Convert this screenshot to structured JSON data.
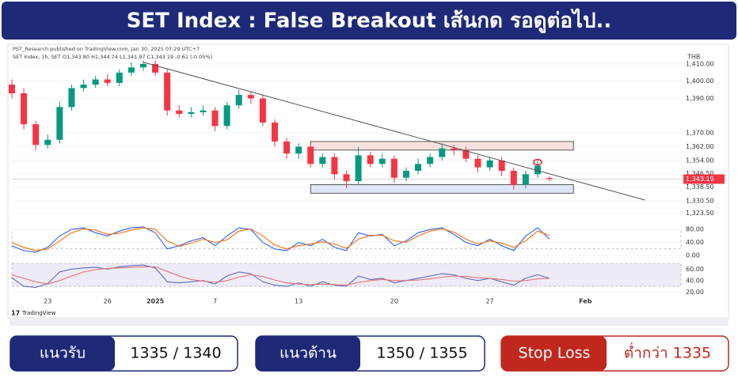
{
  "header": {
    "title": "SET Index : False Breakout เส้นกด รอดูต่อไป.."
  },
  "chart_data": [
    {
      "type": "candlestick",
      "subtitle": "PST_Research published on TradingView.com, Jan 30, 2025 07:29 UTC+7",
      "title": "SET Index, 1h, SET O1,343.80 H1,344.74 L1,341.97 C1,343.19 -0.61 (-0.05%)",
      "y_label": "THB",
      "xlim": [
        0,
        56
      ],
      "ylim": [
        1320,
        1415
      ],
      "yticks": [
        {
          "value": 1410,
          "label": "1,410.00"
        },
        {
          "value": 1400,
          "label": "1,400.00"
        },
        {
          "value": 1390,
          "label": "1,390.00"
        },
        {
          "value": 1370,
          "label": "1,370.00"
        },
        {
          "value": 1362,
          "label": "1,362.00"
        },
        {
          "value": 1354,
          "label": "1,354.00"
        },
        {
          "value": 1346.5,
          "label": "1,346.50"
        },
        {
          "value": 1338.5,
          "label": "1,338.50"
        },
        {
          "value": 1330.5,
          "label": "1,330.50"
        },
        {
          "value": 1323.5,
          "label": "1,323.50"
        }
      ],
      "up_color": "#089981",
      "down_color": "#f23645",
      "open": [
        1398,
        1393,
        1375,
        1363,
        1366,
        1385,
        1396,
        1398,
        1401,
        1399,
        1405,
        1408,
        1410,
        1405,
        1383,
        1381,
        1382,
        1383,
        1374,
        1386,
        1392,
        1390,
        1376,
        1365,
        1358,
        1362,
        1352,
        1356,
        1346,
        1342,
        1357,
        1352,
        1355,
        1344,
        1348,
        1352,
        1356,
        1361,
        1360,
        1355,
        1350,
        1354,
        1348,
        1340,
        1346,
        1343.8
      ],
      "high": [
        1401,
        1396,
        1377,
        1369,
        1388,
        1398,
        1401,
        1403,
        1404,
        1407,
        1411,
        1412,
        1412,
        1407,
        1386,
        1385,
        1386,
        1385,
        1388,
        1395,
        1394,
        1392,
        1378,
        1367,
        1364,
        1364,
        1358,
        1358,
        1348,
        1362,
        1359,
        1358,
        1357,
        1350,
        1355,
        1358,
        1364,
        1363,
        1362,
        1357,
        1356,
        1356,
        1350,
        1348,
        1354,
        1344.74
      ],
      "low": [
        1390,
        1372,
        1360,
        1361,
        1364,
        1383,
        1394,
        1396,
        1397,
        1397,
        1403,
        1406,
        1403,
        1380,
        1379,
        1379,
        1380,
        1371,
        1372,
        1384,
        1387,
        1374,
        1362,
        1355,
        1355,
        1350,
        1350,
        1343,
        1338,
        1340,
        1350,
        1350,
        1341,
        1342,
        1346,
        1350,
        1354,
        1357,
        1353,
        1347,
        1348,
        1345,
        1337,
        1338,
        1344,
        1341.97
      ],
      "close": [
        1393,
        1375,
        1363,
        1366,
        1385,
        1396,
        1398,
        1401,
        1399,
        1405,
        1408,
        1410,
        1405,
        1383,
        1381,
        1382,
        1383,
        1374,
        1386,
        1392,
        1390,
        1376,
        1365,
        1358,
        1362,
        1352,
        1356,
        1346,
        1342,
        1357,
        1352,
        1355,
        1344,
        1348,
        1352,
        1356,
        1361,
        1360,
        1355,
        1350,
        1354,
        1348,
        1340,
        1346,
        1351,
        1343.19
      ],
      "last_price": {
        "value": 1343.19,
        "label": "1,343.19"
      },
      "trendline": {
        "x": [
          11,
          53
        ],
        "y": [
          1411,
          1331
        ]
      },
      "zones": [
        {
          "x": [
            25,
            47
          ],
          "y": [
            1360,
            1365
          ],
          "color": "#f7e1df"
        },
        {
          "x": [
            25,
            47
          ],
          "y": [
            1335,
            1340
          ],
          "color": "#dce6f4"
        }
      ],
      "marker": {
        "x": 44,
        "y": 1353
      }
    },
    {
      "type": "line",
      "xlim": [
        0,
        56
      ],
      "ylim": [
        0,
        100
      ],
      "yticks": [
        {
          "value": 80,
          "label": "80.00"
        },
        {
          "value": 40,
          "label": "40.00"
        },
        {
          "value": 0,
          "label": "0.00"
        }
      ],
      "band": [
        20,
        80
      ],
      "series": [
        {
          "color": "#2962ff",
          "values": [
            30,
            15,
            10,
            25,
            60,
            80,
            85,
            70,
            60,
            75,
            85,
            88,
            70,
            20,
            30,
            45,
            55,
            30,
            60,
            85,
            80,
            40,
            20,
            15,
            40,
            30,
            50,
            25,
            15,
            70,
            60,
            65,
            30,
            45,
            70,
            80,
            85,
            65,
            40,
            30,
            50,
            30,
            15,
            60,
            85,
            50
          ]
        },
        {
          "color": "#ff6d00",
          "values": [
            40,
            25,
            15,
            20,
            45,
            70,
            82,
            78,
            65,
            68,
            78,
            85,
            80,
            45,
            28,
            38,
            50,
            40,
            48,
            75,
            82,
            60,
            32,
            20,
            30,
            35,
            42,
            35,
            22,
            50,
            62,
            62,
            45,
            40,
            60,
            75,
            82,
            72,
            50,
            35,
            45,
            38,
            25,
            45,
            75,
            62
          ]
        }
      ]
    },
    {
      "type": "line",
      "xlim": [
        0,
        56
      ],
      "ylim": [
        15,
        70
      ],
      "yticks": [
        {
          "value": 60,
          "label": "60.00"
        },
        {
          "value": 40,
          "label": "40.00"
        },
        {
          "value": 20,
          "label": "20.00"
        }
      ],
      "band": [
        30,
        70
      ],
      "xticks": [
        {
          "value": 3,
          "label": "23"
        },
        {
          "value": 8,
          "label": "26"
        },
        {
          "value": 12,
          "label": "2025"
        },
        {
          "value": 17,
          "label": "7"
        },
        {
          "value": 24,
          "label": "13"
        },
        {
          "value": 32,
          "label": "20"
        },
        {
          "value": 40,
          "label": "27"
        },
        {
          "value": 48,
          "label": "Feb"
        }
      ],
      "series": [
        {
          "color": "#5c6bc0",
          "values": [
            45,
            30,
            28,
            35,
            55,
            60,
            62,
            63,
            60,
            64,
            66,
            67,
            62,
            38,
            36,
            38,
            40,
            34,
            48,
            55,
            52,
            38,
            32,
            30,
            36,
            30,
            38,
            32,
            30,
            48,
            42,
            44,
            36,
            40,
            44,
            48,
            52,
            50,
            44,
            40,
            44,
            38,
            32,
            44,
            50,
            44
          ]
        },
        {
          "color": "#e57373",
          "values": [
            50,
            44,
            38,
            34,
            40,
            48,
            55,
            59,
            61,
            62,
            63,
            64,
            64,
            56,
            48,
            42,
            39,
            37,
            40,
            46,
            50,
            47,
            41,
            36,
            34,
            33,
            34,
            33,
            32,
            37,
            40,
            42,
            40,
            40,
            41,
            43,
            46,
            48,
            47,
            45,
            44,
            42,
            39,
            40,
            43,
            44
          ]
        }
      ]
    }
  ],
  "brand": "TradingView",
  "levels": [
    {
      "label": "แนวรับ",
      "value": "1335 / 1340"
    },
    {
      "label": "แนวต้าน",
      "value": "1350 / 1355"
    },
    {
      "label": "Stop Loss",
      "value": "ต่ำกว่า 1335"
    }
  ]
}
